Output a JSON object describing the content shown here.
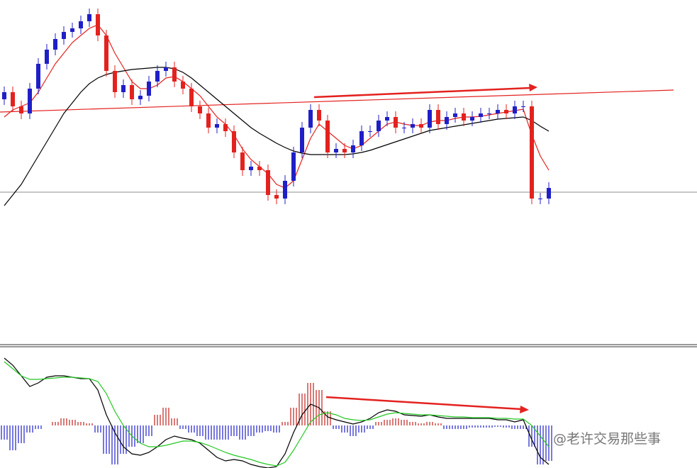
{
  "chart_data": [
    {
      "type": "candlestick",
      "up_color": "#1f1fc8",
      "down_color": "#e3221f",
      "ylim": [
        0,
        480
      ],
      "open": [
        340,
        350,
        330,
        320,
        355,
        390,
        410,
        425,
        435,
        440,
        450,
        460,
        430,
        380,
        350,
        360,
        340,
        345,
        365,
        380,
        385,
        365,
        355,
        330,
        320,
        300,
        305,
        295,
        265,
        240,
        245,
        240,
        205,
        200,
        225,
        265,
        300,
        325,
        310,
        265,
        270,
        265,
        275,
        295,
        295,
        310,
        315,
        300,
        300,
        305,
        300,
        325,
        305,
        315,
        320,
        310,
        315,
        320,
        320,
        325,
        320,
        330,
        330,
        200,
        200
      ],
      "high": [
        358,
        358,
        338,
        363,
        398,
        418,
        433,
        443,
        448,
        458,
        468,
        468,
        438,
        388,
        368,
        368,
        353,
        373,
        388,
        393,
        393,
        373,
        363,
        338,
        328,
        313,
        313,
        303,
        273,
        253,
        253,
        248,
        213,
        233,
        273,
        308,
        333,
        333,
        318,
        278,
        278,
        283,
        303,
        303,
        318,
        323,
        323,
        308,
        313,
        313,
        333,
        333,
        323,
        328,
        328,
        323,
        328,
        328,
        333,
        333,
        338,
        338,
        338,
        208,
        223
      ],
      "low": [
        332,
        322,
        312,
        312,
        347,
        382,
        402,
        417,
        427,
        432,
        442,
        422,
        372,
        342,
        342,
        332,
        332,
        337,
        357,
        372,
        357,
        347,
        322,
        312,
        292,
        292,
        287,
        257,
        232,
        232,
        232,
        197,
        192,
        192,
        217,
        257,
        292,
        302,
        257,
        257,
        257,
        257,
        267,
        287,
        287,
        302,
        292,
        292,
        292,
        292,
        292,
        297,
        297,
        307,
        302,
        302,
        307,
        312,
        312,
        312,
        312,
        322,
        192,
        192,
        192
      ],
      "close": [
        350,
        330,
        320,
        355,
        390,
        410,
        425,
        435,
        440,
        450,
        460,
        430,
        380,
        350,
        360,
        340,
        345,
        365,
        380,
        385,
        365,
        355,
        330,
        320,
        300,
        305,
        295,
        265,
        240,
        245,
        240,
        205,
        200,
        225,
        265,
        300,
        325,
        310,
        265,
        270,
        265,
        275,
        295,
        295,
        310,
        315,
        300,
        300,
        305,
        300,
        325,
        305,
        315,
        320,
        310,
        315,
        320,
        320,
        325,
        320,
        330,
        330,
        200,
        200,
        215
      ],
      "overlays": [
        {
          "color": "#e3221f",
          "values": [
            315,
            325,
            330,
            335,
            350,
            370,
            390,
            405,
            420,
            430,
            440,
            445,
            430,
            405,
            385,
            365,
            355,
            355,
            360,
            370,
            372,
            365,
            355,
            345,
            330,
            315,
            305,
            290,
            270,
            255,
            245,
            235,
            220,
            215,
            225,
            255,
            285,
            305,
            295,
            285,
            275,
            270,
            275,
            285,
            295,
            305,
            308,
            305,
            303,
            303,
            308,
            310,
            310,
            313,
            315,
            315,
            316,
            318,
            320,
            322,
            324,
            326,
            290,
            260,
            240
          ]
        },
        {
          "color": "#000000",
          "values": [
            190,
            205,
            220,
            240,
            260,
            280,
            300,
            320,
            335,
            350,
            362,
            370,
            375,
            378,
            380,
            382,
            383,
            384,
            385,
            385,
            383,
            378,
            370,
            360,
            350,
            340,
            330,
            320,
            310,
            300,
            292,
            285,
            278,
            272,
            267,
            264,
            262,
            262,
            262,
            262,
            262,
            263,
            265,
            268,
            272,
            276,
            280,
            284,
            288,
            292,
            296,
            298,
            300,
            302,
            304,
            306,
            308,
            310,
            312,
            313,
            314,
            315,
            310,
            302,
            295
          ]
        }
      ]
    },
    {
      "type": "macd",
      "ylim": [
        -60,
        110
      ],
      "pos_color": "#c0201c",
      "neg_color": "#1f1fc8",
      "histogram": [
        -20,
        -35,
        -25,
        -10,
        -5,
        0,
        5,
        10,
        8,
        5,
        3,
        -10,
        -40,
        -55,
        -40,
        -30,
        -25,
        -15,
        15,
        25,
        10,
        -5,
        -10,
        -15,
        -20,
        -20,
        -20,
        -15,
        -20,
        -15,
        -10,
        -8,
        -10,
        5,
        25,
        45,
        60,
        50,
        20,
        -5,
        -10,
        -15,
        -10,
        -5,
        5,
        8,
        10,
        8,
        5,
        3,
        5,
        3,
        -5,
        -5,
        -5,
        -3,
        -3,
        -3,
        -2,
        -3,
        -5,
        -5,
        -30,
        -55,
        -50
      ],
      "lines": [
        {
          "color": "#000000",
          "values": [
            95,
            85,
            70,
            55,
            60,
            68,
            70,
            70,
            68,
            66,
            66,
            50,
            15,
            -10,
            -30,
            -40,
            -42,
            -38,
            -30,
            -20,
            -15,
            -18,
            -20,
            -25,
            -35,
            -45,
            -50,
            -48,
            -50,
            -55,
            -58,
            -60,
            -58,
            -40,
            -10,
            15,
            30,
            25,
            12,
            8,
            5,
            2,
            5,
            10,
            18,
            22,
            20,
            15,
            14,
            13,
            15,
            12,
            10,
            10,
            10,
            10,
            10,
            10,
            8,
            8,
            5,
            8,
            -20,
            -45,
            -55
          ]
        },
        {
          "color": "#22c822",
          "values": [
            90,
            80,
            70,
            65,
            65,
            66,
            67,
            68,
            68,
            67,
            66,
            62,
            45,
            20,
            0,
            -15,
            -25,
            -30,
            -30,
            -28,
            -25,
            -22,
            -22,
            -24,
            -28,
            -33,
            -38,
            -42,
            -45,
            -48,
            -52,
            -55,
            -57,
            -52,
            -35,
            -15,
            5,
            15,
            18,
            15,
            10,
            8,
            7,
            8,
            12,
            16,
            18,
            17,
            16,
            15,
            15,
            14,
            13,
            12,
            12,
            11,
            11,
            11,
            10,
            10,
            9,
            9,
            0,
            -15,
            -30
          ]
        }
      ],
      "watermark": "@老许交易那些事"
    }
  ]
}
